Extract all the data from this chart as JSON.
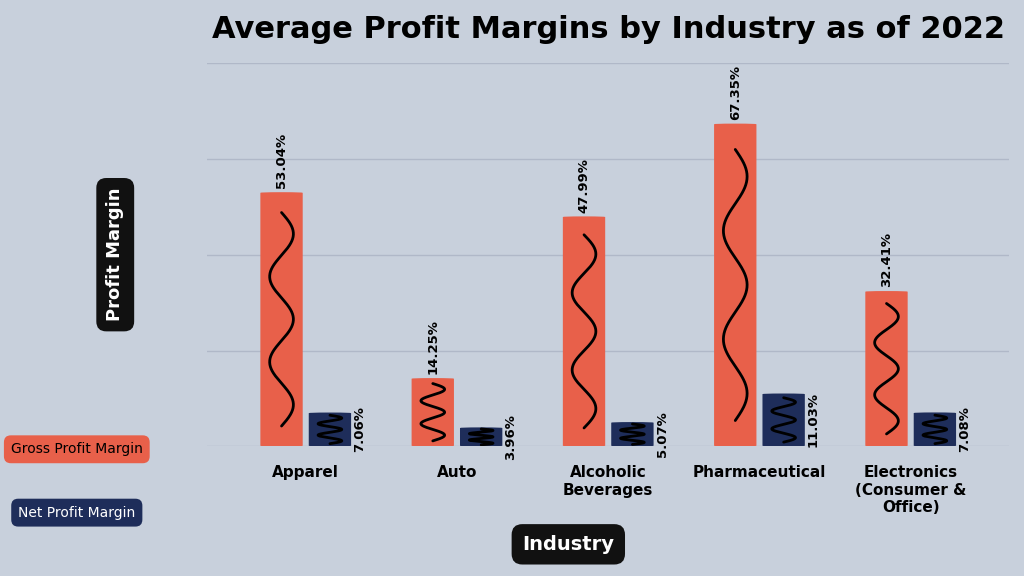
{
  "title": "Average Profit Margins by Industry as of 2022",
  "categories": [
    "Apparel",
    "Auto",
    "Alcoholic\nBeverages",
    "Pharmaceutical",
    "Electronics\n(Consumer &\nOffice)"
  ],
  "gross_profit": [
    53.04,
    14.25,
    47.99,
    67.35,
    32.41
  ],
  "net_profit": [
    7.06,
    3.96,
    5.07,
    11.03,
    7.08
  ],
  "gross_labels": [
    "53.04%",
    "14.25%",
    "47.99%",
    "67.35%",
    "32.41%"
  ],
  "net_labels": [
    "7.06%",
    "3.96%",
    "5.07%",
    "11.03%",
    "7.08%"
  ],
  "gross_color": "#E8604A",
  "net_color": "#1E2D5A",
  "background_color": "#C8D0DC",
  "grid_color": "#B0B8C8",
  "title_fontsize": 22,
  "bar_width": 0.28,
  "ylim": [
    0,
    80
  ],
  "ylabel": "Profit Margin",
  "xlabel": "Industry"
}
